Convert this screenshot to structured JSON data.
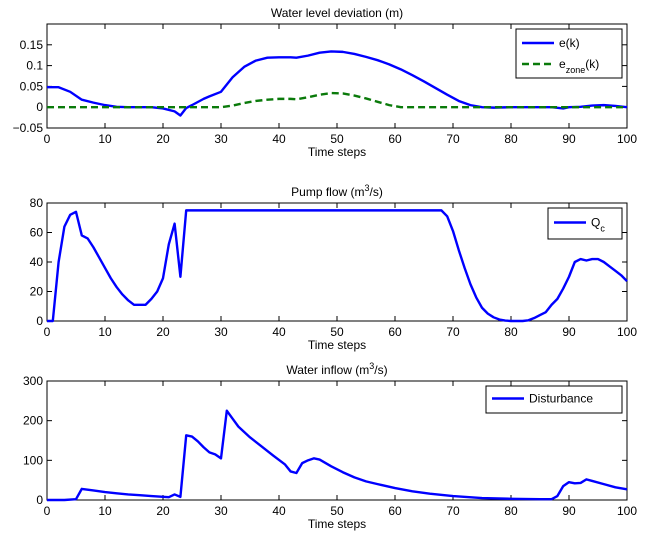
{
  "figure": {
    "title_parts": [
      [
        {
          "t": "Water level deviation (m)"
        }
      ],
      [
        {
          "t": "Pump flow (m"
        },
        {
          "t": "3",
          "sup": true
        },
        {
          "t": "/s)"
        }
      ],
      [
        {
          "t": "Water inflow (m"
        },
        {
          "t": "3",
          "sup": true
        },
        {
          "t": "/s)"
        }
      ]
    ],
    "legend_parts": [
      [
        [
          {
            "t": "e(k)"
          }
        ],
        [
          {
            "t": "e"
          },
          {
            "t": "zone",
            "sub": true
          },
          {
            "t": "(k)"
          }
        ]
      ],
      [
        [
          {
            "t": "Q"
          },
          {
            "t": "c",
            "sub": true
          }
        ]
      ],
      [
        [
          {
            "t": "Disturbance"
          }
        ]
      ]
    ]
  },
  "chart_data": [
    {
      "type": "line",
      "title": "Water level deviation (m)",
      "xlabel": "Time steps",
      "ylabel": "",
      "xlim": [
        0,
        100
      ],
      "ylim": [
        -0.05,
        0.2
      ],
      "xticks": [
        0,
        10,
        20,
        30,
        40,
        50,
        60,
        70,
        80,
        90,
        100
      ],
      "xtick_labels": [
        "0",
        "10",
        "20",
        "30",
        "40",
        "50",
        "60",
        "70",
        "80",
        "90",
        "100"
      ],
      "yticks": [
        -0.05,
        0,
        0.05,
        0.1,
        0.15
      ],
      "ytick_labels": [
        "−0.05",
        "0",
        "0.05",
        "0.1",
        "0.15"
      ],
      "grid": false,
      "legend_position": "top-right",
      "series": [
        {
          "name": "e(k)",
          "color": "#0000ff",
          "dash": "solid",
          "x": [
            0,
            2,
            4,
            6,
            8,
            10,
            12,
            14,
            16,
            18,
            20,
            22,
            23,
            24,
            25,
            27,
            28,
            30,
            32,
            34,
            36,
            38,
            40,
            42,
            43,
            45,
            47,
            49,
            51,
            53,
            55,
            57,
            59,
            61,
            63,
            65,
            67,
            69,
            71,
            73,
            75,
            77,
            80,
            83,
            85,
            87,
            89,
            90,
            92,
            94,
            96,
            98,
            100
          ],
          "y": [
            0.048,
            0.048,
            0.037,
            0.018,
            0.011,
            0.005,
            0.001,
            0,
            0,
            0,
            -0.003,
            -0.01,
            -0.02,
            -0.002,
            0.005,
            0.02,
            0.026,
            0.037,
            0.072,
            0.097,
            0.112,
            0.119,
            0.12,
            0.12,
            0.119,
            0.124,
            0.131,
            0.134,
            0.133,
            0.128,
            0.121,
            0.113,
            0.103,
            0.091,
            0.077,
            0.062,
            0.046,
            0.03,
            0.015,
            0.005,
            0,
            -0.001,
            0,
            0,
            0,
            0,
            -0.003,
            0,
            0.001,
            0.004,
            0.005,
            0.003,
            0
          ]
        },
        {
          "name": "e_zone(k)",
          "color": "#0a7a0a",
          "dash": "dashed",
          "x": [
            0,
            30,
            32,
            34,
            36,
            38,
            40,
            42,
            43,
            45,
            47,
            49,
            51,
            53,
            55,
            57,
            59,
            61,
            63,
            100
          ],
          "y": [
            0,
            0,
            0.004,
            0.01,
            0.015,
            0.018,
            0.02,
            0.02,
            0.019,
            0.024,
            0.03,
            0.034,
            0.033,
            0.028,
            0.021,
            0.013,
            0.005,
            0,
            0,
            0
          ]
        }
      ]
    },
    {
      "type": "line",
      "title": "Pump flow (m3/s)",
      "xlabel": "Time steps",
      "ylabel": "",
      "xlim": [
        0,
        100
      ],
      "ylim": [
        0,
        80
      ],
      "xticks": [
        0,
        10,
        20,
        30,
        40,
        50,
        60,
        70,
        80,
        90,
        100
      ],
      "xtick_labels": [
        "0",
        "10",
        "20",
        "30",
        "40",
        "50",
        "60",
        "70",
        "80",
        "90",
        "100"
      ],
      "yticks": [
        0,
        20,
        40,
        60,
        80
      ],
      "ytick_labels": [
        "0",
        "20",
        "40",
        "60",
        "80"
      ],
      "grid": false,
      "legend_position": "top-right",
      "series": [
        {
          "name": "Qc",
          "color": "#0000ff",
          "dash": "solid",
          "x": [
            0,
            1,
            2,
            3,
            4,
            5,
            6,
            7,
            8,
            9,
            10,
            11,
            12,
            13,
            14,
            15,
            16,
            17,
            18,
            19,
            20,
            21,
            22,
            23,
            24,
            68,
            69,
            70,
            71,
            72,
            73,
            74,
            75,
            76,
            77,
            78,
            79,
            80,
            81,
            82,
            83,
            84,
            85,
            86,
            87,
            88,
            89,
            90,
            91,
            92,
            93,
            94,
            95,
            96,
            97,
            98,
            99,
            100
          ],
          "y": [
            0,
            0,
            40,
            64,
            72,
            74,
            58,
            56,
            50,
            43,
            36,
            29,
            23,
            18,
            14,
            11,
            11,
            11,
            15,
            20,
            29,
            52,
            66,
            30,
            75,
            75,
            71,
            61,
            48,
            36,
            25,
            16,
            9,
            5,
            2.5,
            1,
            0.3,
            0,
            0,
            0,
            0.5,
            2,
            4,
            6,
            11,
            15,
            22,
            30,
            40,
            42,
            41,
            42,
            42,
            40,
            37,
            34,
            31,
            27
          ]
        }
      ]
    },
    {
      "type": "line",
      "title": "Water inflow (m3/s)",
      "xlabel": "Time steps",
      "ylabel": "",
      "xlim": [
        0,
        100
      ],
      "ylim": [
        0,
        300
      ],
      "xticks": [
        0,
        10,
        20,
        30,
        40,
        50,
        60,
        70,
        80,
        90,
        100
      ],
      "xtick_labels": [
        "0",
        "10",
        "20",
        "30",
        "40",
        "50",
        "60",
        "70",
        "80",
        "90",
        "100"
      ],
      "yticks": [
        0,
        100,
        200,
        300
      ],
      "ytick_labels": [
        "0",
        "100",
        "200",
        "300"
      ],
      "grid": false,
      "legend_position": "top-right",
      "series": [
        {
          "name": "Disturbance",
          "color": "#0000ff",
          "dash": "solid",
          "x": [
            0,
            3,
            5,
            6,
            8,
            10,
            12,
            14,
            16,
            18,
            20,
            21,
            22,
            23,
            24,
            25,
            26,
            27,
            28,
            29,
            30,
            31,
            32,
            33,
            35,
            37,
            39,
            41,
            42,
            43,
            44,
            45,
            46,
            47,
            49,
            51,
            53,
            55,
            57,
            60,
            63,
            66,
            70,
            75,
            80,
            85,
            87,
            88,
            89,
            90,
            91,
            92,
            93,
            94,
            96,
            98,
            100
          ],
          "y": [
            0,
            0,
            2,
            28,
            24,
            20,
            17,
            14,
            12,
            10,
            8,
            7,
            14,
            8,
            163,
            160,
            148,
            133,
            120,
            115,
            105,
            225,
            205,
            185,
            158,
            135,
            112,
            90,
            72,
            68,
            93,
            100,
            105,
            102,
            85,
            70,
            57,
            47,
            40,
            30,
            22,
            16,
            10,
            5,
            3,
            2,
            2,
            10,
            35,
            45,
            42,
            43,
            52,
            48,
            40,
            32,
            27
          ]
        }
      ]
    }
  ]
}
